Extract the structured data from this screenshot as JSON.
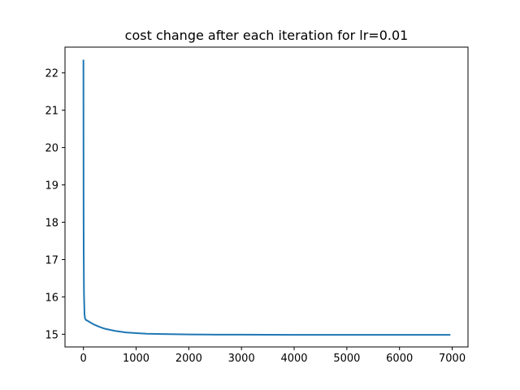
{
  "chart_data": {
    "type": "line",
    "title": "cost change after each iteration for lr=0.01",
    "xlabel": "",
    "ylabel": "",
    "xlim": [
      -350,
      7300
    ],
    "ylim": [
      14.66,
      22.69
    ],
    "grid": false,
    "legend": "none",
    "x_ticks": [
      0,
      1000,
      2000,
      3000,
      4000,
      5000,
      6000,
      7000
    ],
    "y_ticks": [
      15,
      16,
      17,
      18,
      19,
      20,
      21,
      22
    ],
    "series": [
      {
        "color": "#1f77b4",
        "x": [
          0,
          1,
          3,
          5,
          10,
          20,
          30,
          50,
          80,
          100,
          150,
          200,
          300,
          400,
          500,
          600,
          800,
          1000,
          1200,
          1500,
          2000,
          2500,
          3000,
          4000,
          5000,
          6000,
          6950
        ],
        "y": [
          22.33,
          20.6,
          18.2,
          17.2,
          16.1,
          15.55,
          15.42,
          15.38,
          15.36,
          15.34,
          15.3,
          15.26,
          15.2,
          15.15,
          15.12,
          15.09,
          15.05,
          15.03,
          15.015,
          15.005,
          14.995,
          14.99,
          14.988,
          14.985,
          14.985,
          14.985,
          14.985
        ]
      }
    ]
  }
}
